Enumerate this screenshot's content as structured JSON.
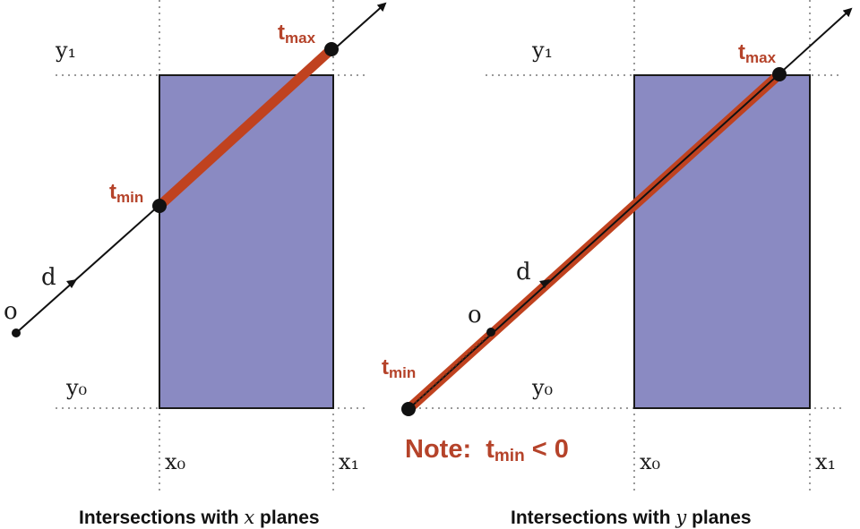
{
  "colors": {
    "box_fill": "#8a8ac2",
    "segment": "#c0421f",
    "accent_text": "#b5432a",
    "ray": "#111111",
    "dotted": "#9a9a9a"
  },
  "left": {
    "label_y1": "y₁",
    "label_y0": "y₀",
    "label_x0": "x₀",
    "label_x1": "x₁",
    "label_o": "o",
    "label_d": "d",
    "tmin": {
      "base": "t",
      "sub": "min"
    },
    "tmax": {
      "base": "t",
      "sub": "max"
    },
    "caption": {
      "prefix": "Intersections with ",
      "var": "x",
      "suffix": " planes"
    }
  },
  "right": {
    "label_y1": "y₁",
    "label_y0": "y₀",
    "label_x0": "x₀",
    "label_x1": "x₁",
    "label_o": "o",
    "label_d": "d",
    "tmin": {
      "base": "t",
      "sub": "min"
    },
    "tmax": {
      "base": "t",
      "sub": "max"
    },
    "note": {
      "prefix": "Note:  ",
      "base": "t",
      "sub": "min",
      "suffix": " < 0"
    },
    "caption": {
      "prefix": "Intersections with ",
      "var": "y",
      "suffix": " planes"
    }
  }
}
